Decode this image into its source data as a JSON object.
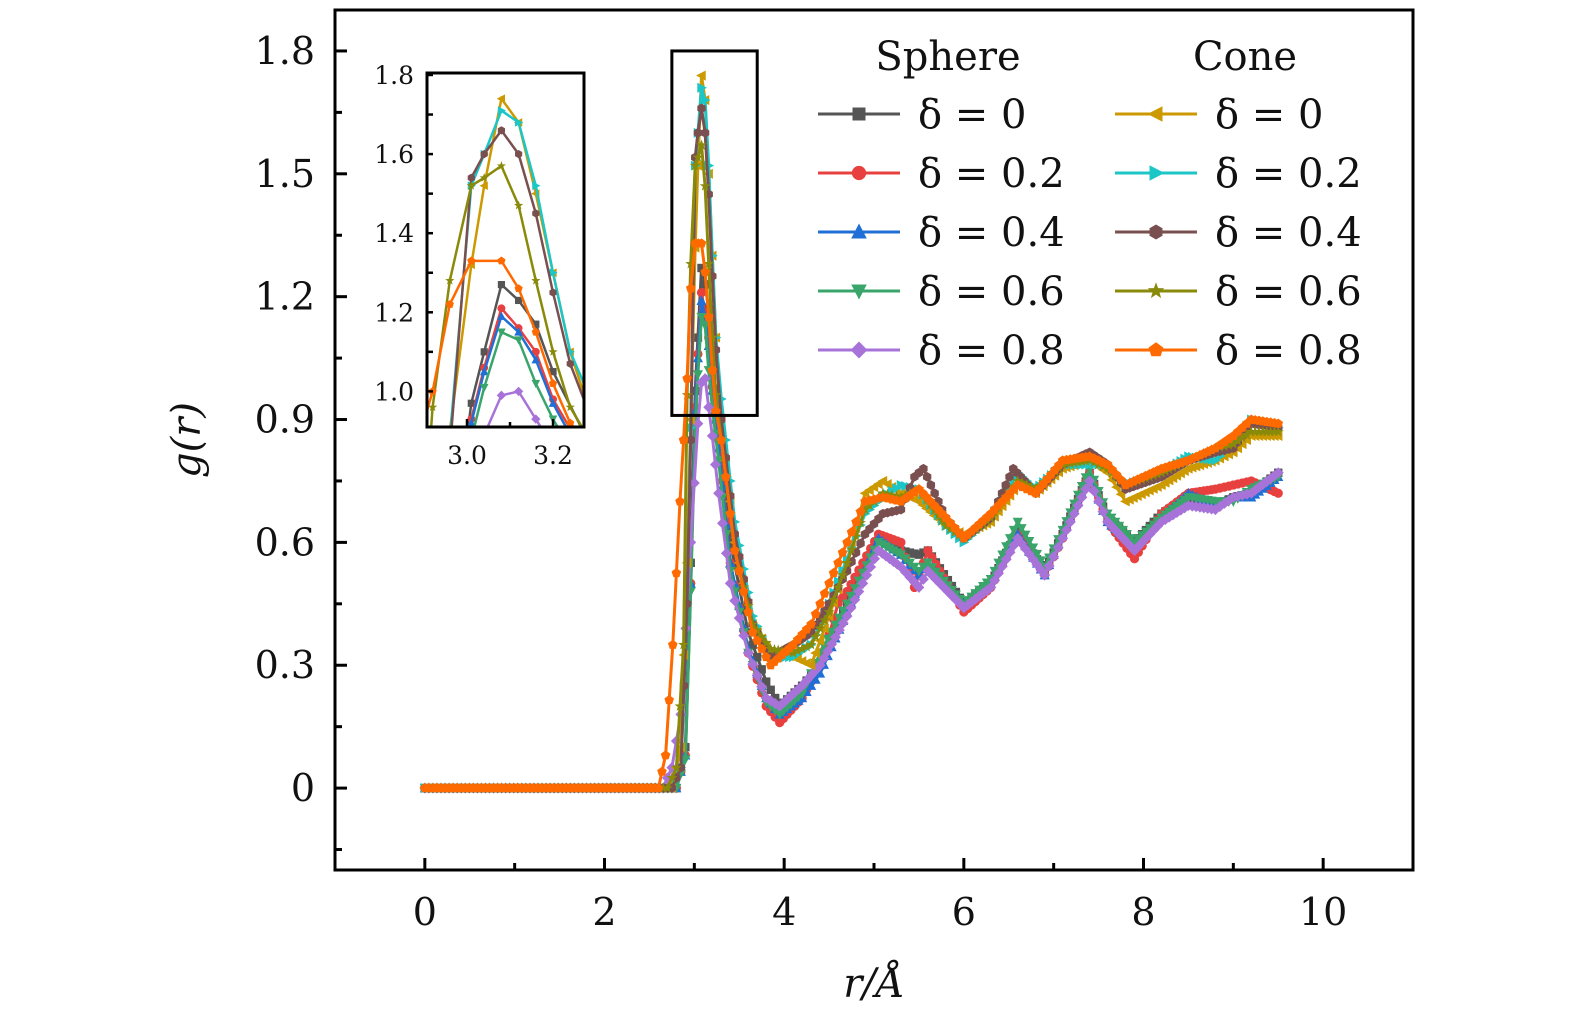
{
  "chart_data": {
    "type": "line",
    "title": "",
    "xlabel": "r/Å",
    "ylabel": "g(r)",
    "xlim": [
      -1,
      11
    ],
    "ylim": [
      -0.2,
      1.9
    ],
    "xticks": [
      0,
      2,
      4,
      6,
      8,
      10
    ],
    "xtick_labels": [
      "0",
      "2",
      "4",
      "6",
      "8",
      "10"
    ],
    "yticks": [
      0,
      0.3,
      0.6,
      0.9,
      1.2,
      1.5,
      1.8
    ],
    "ytick_labels": [
      "0",
      "0.3",
      "0.6",
      "0.9",
      "1.2",
      "1.5",
      "1.8"
    ],
    "grid": false,
    "legend": {
      "placement": "top-right",
      "groups": [
        {
          "title": "Sphere",
          "entries": [
            "δ = 0",
            "δ = 0.2",
            "δ = 0.4",
            "δ = 0.6",
            "δ = 0.8"
          ]
        },
        {
          "title": "Cone",
          "entries": [
            "δ = 0",
            "δ = 0.2",
            "δ = 0.4",
            "δ = 0.6",
            "δ = 0.8"
          ]
        }
      ]
    },
    "zoom_box": {
      "x": [
        2.75,
        3.7
      ],
      "y": [
        0.91,
        1.8
      ]
    },
    "inset": {
      "xlim": [
        2.907,
        3.272
      ],
      "ylim": [
        0.91,
        1.805
      ],
      "xticks": [
        3.0,
        3.2
      ],
      "xtick_labels": [
        "3.0",
        "3.2"
      ],
      "yticks": [
        1.0,
        1.2,
        1.4,
        1.6,
        1.8
      ],
      "ytick_labels": [
        "1.0",
        "1.2",
        "1.4",
        "1.6",
        "1.8"
      ]
    },
    "series": [
      {
        "name": "Sphere δ = 0",
        "group": "Sphere",
        "color": "#555555",
        "marker": "square",
        "x": [
          0,
          2.7,
          2.8,
          2.9,
          2.96,
          3.01,
          3.04,
          3.08,
          3.12,
          3.16,
          3.2,
          3.27,
          3.4,
          3.6,
          3.8,
          3.95,
          4.2,
          4.4,
          4.7,
          5.05,
          5.3,
          5.5,
          5.6,
          6.0,
          6.3,
          6.6,
          6.9,
          7.1,
          7.4,
          7.6,
          7.9,
          8.2,
          8.5,
          8.8,
          9.0,
          9.2,
          9.5
        ],
        "y": [
          0,
          0,
          0.0,
          0.1,
          0.55,
          0.97,
          1.1,
          1.27,
          1.23,
          1.17,
          1.05,
          0.9,
          0.6,
          0.38,
          0.26,
          0.2,
          0.25,
          0.3,
          0.45,
          0.61,
          0.58,
          0.57,
          0.58,
          0.45,
          0.5,
          0.63,
          0.53,
          0.62,
          0.77,
          0.66,
          0.6,
          0.67,
          0.71,
          0.69,
          0.71,
          0.72,
          0.77
        ]
      },
      {
        "name": "Sphere δ = 0.2",
        "group": "Sphere",
        "color": "#e8403f",
        "marker": "circle",
        "x": [
          0,
          2.7,
          2.8,
          2.9,
          2.96,
          3.01,
          3.04,
          3.08,
          3.12,
          3.16,
          3.2,
          3.27,
          3.4,
          3.6,
          3.8,
          3.95,
          4.2,
          4.4,
          4.6,
          4.7,
          5.05,
          5.3,
          5.45,
          5.6,
          6.0,
          6.3,
          6.6,
          6.9,
          7.1,
          7.4,
          7.6,
          7.9,
          8.2,
          8.5,
          8.8,
          9.0,
          9.2,
          9.5
        ],
        "y": [
          0,
          0,
          0.0,
          0.08,
          0.5,
          0.93,
          1.06,
          1.21,
          1.16,
          1.1,
          0.98,
          0.85,
          0.55,
          0.33,
          0.2,
          0.16,
          0.22,
          0.3,
          0.45,
          0.48,
          0.62,
          0.6,
          0.49,
          0.58,
          0.43,
          0.49,
          0.62,
          0.52,
          0.61,
          0.77,
          0.65,
          0.56,
          0.67,
          0.72,
          0.73,
          0.74,
          0.75,
          0.72
        ]
      },
      {
        "name": "Sphere δ = 0.4",
        "group": "Sphere",
        "color": "#1f6fd6",
        "marker": "triangle-up",
        "x": [
          0,
          2.7,
          2.8,
          2.9,
          2.96,
          3.01,
          3.04,
          3.08,
          3.12,
          3.16,
          3.2,
          3.27,
          3.4,
          3.6,
          3.8,
          3.95,
          4.2,
          4.4,
          4.7,
          5.05,
          5.3,
          5.5,
          5.6,
          6.0,
          6.3,
          6.6,
          6.9,
          7.1,
          7.4,
          7.6,
          7.9,
          8.2,
          8.5,
          8.8,
          9.0,
          9.2,
          9.5
        ],
        "y": [
          0,
          0,
          0.0,
          0.08,
          0.5,
          0.92,
          1.05,
          1.19,
          1.15,
          1.08,
          0.97,
          0.83,
          0.55,
          0.34,
          0.22,
          0.18,
          0.22,
          0.28,
          0.43,
          0.61,
          0.57,
          0.52,
          0.55,
          0.45,
          0.5,
          0.62,
          0.52,
          0.62,
          0.76,
          0.65,
          0.59,
          0.66,
          0.72,
          0.69,
          0.71,
          0.71,
          0.76
        ]
      },
      {
        "name": "Sphere δ = 0.6",
        "group": "Sphere",
        "color": "#3aa56b",
        "marker": "triangle-down",
        "x": [
          0,
          2.7,
          2.8,
          2.9,
          2.96,
          3.01,
          3.04,
          3.08,
          3.12,
          3.16,
          3.2,
          3.27,
          3.4,
          3.6,
          3.8,
          3.95,
          4.2,
          4.4,
          4.7,
          5.05,
          5.3,
          5.5,
          5.6,
          6.0,
          6.3,
          6.6,
          6.9,
          7.1,
          7.4,
          7.6,
          7.9,
          8.2,
          8.5,
          8.8,
          9.0,
          9.2,
          9.5
        ],
        "y": [
          0,
          0,
          0.0,
          0.07,
          0.48,
          0.88,
          1.01,
          1.15,
          1.13,
          1.02,
          0.93,
          0.8,
          0.53,
          0.33,
          0.21,
          0.18,
          0.23,
          0.33,
          0.45,
          0.6,
          0.57,
          0.53,
          0.55,
          0.45,
          0.51,
          0.65,
          0.54,
          0.63,
          0.78,
          0.67,
          0.6,
          0.66,
          0.71,
          0.7,
          0.7,
          0.73,
          0.76
        ]
      },
      {
        "name": "Sphere δ = 0.8",
        "group": "Sphere",
        "color": "#a873d8",
        "marker": "diamond",
        "x": [
          0,
          2.65,
          2.75,
          2.85,
          2.96,
          3.04,
          3.08,
          3.12,
          3.16,
          3.2,
          3.27,
          3.4,
          3.6,
          3.8,
          3.95,
          4.2,
          4.4,
          4.7,
          5.05,
          5.3,
          5.5,
          5.6,
          6.0,
          6.3,
          6.6,
          6.9,
          7.1,
          7.4,
          7.6,
          7.9,
          8.2,
          8.5,
          8.8,
          9.0,
          9.2,
          9.5
        ],
        "y": [
          0,
          0,
          0.05,
          0.18,
          0.6,
          0.89,
          0.99,
          1.0,
          0.93,
          0.86,
          0.72,
          0.5,
          0.33,
          0.22,
          0.2,
          0.25,
          0.3,
          0.42,
          0.58,
          0.54,
          0.49,
          0.53,
          0.44,
          0.49,
          0.61,
          0.52,
          0.61,
          0.75,
          0.65,
          0.58,
          0.65,
          0.69,
          0.68,
          0.71,
          0.72,
          0.77
        ]
      },
      {
        "name": "Cone δ = 0",
        "group": "Cone",
        "color": "#cc9900",
        "marker": "triangle-left",
        "x": [
          0,
          2.75,
          2.85,
          2.92,
          2.96,
          3.01,
          3.04,
          3.08,
          3.12,
          3.16,
          3.2,
          3.24,
          3.3,
          3.45,
          3.65,
          3.85,
          4.1,
          4.3,
          4.5,
          4.7,
          4.9,
          5.1,
          5.3,
          5.5,
          5.8,
          6.0,
          6.3,
          6.6,
          6.8,
          7.1,
          7.4,
          7.6,
          7.8,
          8.2,
          8.5,
          8.8,
          9.0,
          9.2,
          9.5
        ],
        "y": [
          0,
          0,
          0.1,
          0.55,
          0.9,
          1.32,
          1.52,
          1.74,
          1.68,
          1.5,
          1.3,
          1.1,
          0.9,
          0.6,
          0.4,
          0.33,
          0.32,
          0.3,
          0.42,
          0.55,
          0.72,
          0.75,
          0.72,
          0.7,
          0.64,
          0.62,
          0.65,
          0.74,
          0.72,
          0.78,
          0.8,
          0.77,
          0.7,
          0.74,
          0.78,
          0.8,
          0.82,
          0.86,
          0.86
        ]
      },
      {
        "name": "Cone δ = 0.2",
        "group": "Cone",
        "color": "#1cc6c6",
        "marker": "triangle-right",
        "x": [
          0,
          2.75,
          2.85,
          2.92,
          2.96,
          3.01,
          3.04,
          3.08,
          3.12,
          3.16,
          3.2,
          3.24,
          3.3,
          3.45,
          3.65,
          3.85,
          4.1,
          4.3,
          4.5,
          4.7,
          4.9,
          5.1,
          5.3,
          5.5,
          5.8,
          6.0,
          6.3,
          6.6,
          6.8,
          7.1,
          7.4,
          7.6,
          7.8,
          8.2,
          8.5,
          8.8,
          9.0,
          9.2,
          9.5
        ],
        "y": [
          0,
          0,
          0.05,
          0.45,
          0.88,
          1.52,
          1.6,
          1.71,
          1.68,
          1.52,
          1.3,
          1.1,
          0.95,
          0.65,
          0.42,
          0.32,
          0.32,
          0.35,
          0.45,
          0.56,
          0.67,
          0.71,
          0.74,
          0.73,
          0.64,
          0.6,
          0.66,
          0.77,
          0.73,
          0.79,
          0.79,
          0.79,
          0.74,
          0.77,
          0.81,
          0.8,
          0.84,
          0.9,
          0.88
        ]
      },
      {
        "name": "Cone δ = 0.4",
        "group": "Cone",
        "color": "#7a4f4f",
        "marker": "hexagon",
        "x": [
          0,
          2.75,
          2.85,
          2.92,
          2.96,
          3.01,
          3.04,
          3.08,
          3.12,
          3.16,
          3.2,
          3.24,
          3.3,
          3.45,
          3.65,
          3.85,
          4.1,
          4.3,
          4.5,
          4.7,
          4.9,
          5.1,
          5.3,
          5.45,
          5.55,
          5.8,
          6.0,
          6.3,
          6.55,
          6.8,
          7.1,
          7.4,
          7.6,
          7.8,
          8.2,
          8.5,
          8.8,
          9.0,
          9.2,
          9.5
        ],
        "y": [
          0,
          0,
          0.05,
          0.45,
          0.85,
          1.54,
          1.6,
          1.66,
          1.6,
          1.45,
          1.25,
          1.07,
          0.9,
          0.62,
          0.4,
          0.32,
          0.35,
          0.38,
          0.45,
          0.53,
          0.62,
          0.67,
          0.68,
          0.76,
          0.78,
          0.66,
          0.61,
          0.66,
          0.78,
          0.72,
          0.79,
          0.82,
          0.79,
          0.73,
          0.76,
          0.8,
          0.82,
          0.83,
          0.89,
          0.88
        ]
      },
      {
        "name": "Cone δ = 0.6",
        "group": "Cone",
        "color": "#8a8a0a",
        "marker": "star",
        "x": [
          0,
          2.7,
          2.8,
          2.88,
          2.92,
          2.96,
          3.01,
          3.04,
          3.08,
          3.12,
          3.16,
          3.2,
          3.24,
          3.3,
          3.45,
          3.65,
          3.85,
          4.1,
          4.3,
          4.5,
          4.7,
          4.9,
          5.1,
          5.3,
          5.5,
          5.8,
          6.0,
          6.3,
          6.6,
          6.8,
          7.1,
          7.4,
          7.6,
          7.8,
          8.2,
          8.5,
          8.8,
          9.0,
          9.2,
          9.5
        ],
        "y": [
          0,
          0,
          0.05,
          0.35,
          0.96,
          1.28,
          1.52,
          1.54,
          1.57,
          1.47,
          1.28,
          1.1,
          0.96,
          0.85,
          0.58,
          0.4,
          0.34,
          0.33,
          0.35,
          0.43,
          0.55,
          0.68,
          0.72,
          0.71,
          0.73,
          0.64,
          0.61,
          0.66,
          0.75,
          0.73,
          0.79,
          0.8,
          0.78,
          0.74,
          0.77,
          0.8,
          0.83,
          0.84,
          0.87,
          0.87
        ]
      },
      {
        "name": "Cone δ = 0.8",
        "group": "Cone",
        "color": "#ff6a00",
        "marker": "pentagon",
        "x": [
          0,
          2.6,
          2.68,
          2.76,
          2.84,
          2.92,
          2.96,
          3.01,
          3.08,
          3.12,
          3.16,
          3.2,
          3.24,
          3.3,
          3.45,
          3.65,
          3.85,
          4.1,
          4.3,
          4.5,
          4.7,
          4.9,
          5.1,
          5.3,
          5.5,
          5.8,
          6.0,
          6.3,
          6.6,
          6.8,
          7.1,
          7.4,
          7.6,
          7.8,
          8.2,
          8.5,
          8.8,
          9.0,
          9.2,
          9.5
        ],
        "y": [
          0,
          0,
          0.08,
          0.35,
          0.7,
          1.0,
          1.22,
          1.33,
          1.33,
          1.26,
          1.15,
          1.02,
          0.92,
          0.85,
          0.58,
          0.38,
          0.3,
          0.35,
          0.4,
          0.5,
          0.6,
          0.7,
          0.71,
          0.7,
          0.73,
          0.66,
          0.61,
          0.67,
          0.74,
          0.72,
          0.8,
          0.81,
          0.79,
          0.74,
          0.78,
          0.8,
          0.83,
          0.86,
          0.9,
          0.89
        ]
      }
    ]
  }
}
